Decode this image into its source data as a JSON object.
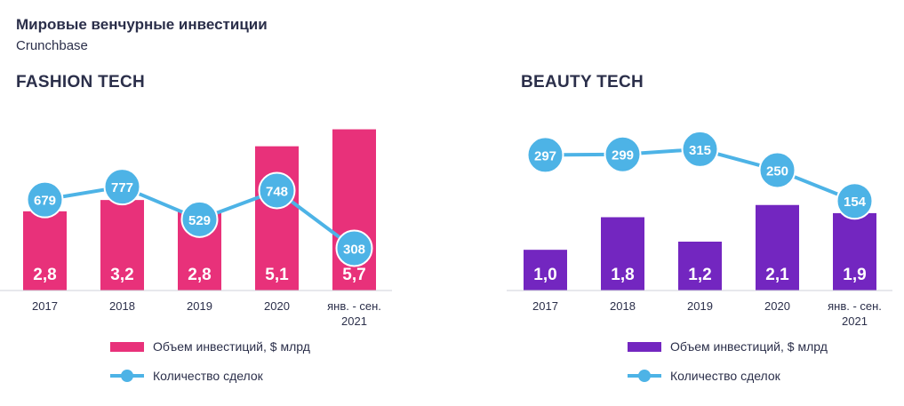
{
  "header": {
    "title": "Мировые венчурные инвестиции",
    "source": "Crunchbase"
  },
  "chart_data": [
    {
      "type": "bar",
      "title": "FASHION TECH",
      "categories": [
        "2017",
        "2018",
        "2019",
        "2020",
        "янв. - сен. 2021"
      ],
      "category_lines": [
        [
          "2017"
        ],
        [
          "2018"
        ],
        [
          "2019"
        ],
        [
          "2020"
        ],
        [
          "янв. - сен.",
          "2021"
        ]
      ],
      "series": [
        {
          "name": "Объем инвестиций, $ млрд",
          "kind": "bar",
          "values": [
            2.8,
            3.2,
            2.8,
            5.1,
            5.7
          ],
          "labels": [
            "2,8",
            "3,2",
            "2,8",
            "5,1",
            "5,7"
          ],
          "color": "#e8317a"
        },
        {
          "name": "Количество сделок",
          "kind": "line",
          "values": [
            679,
            777,
            529,
            748,
            308
          ],
          "labels": [
            "679",
            "777",
            "529",
            "748",
            "308"
          ],
          "color": "#4db3e6"
        }
      ],
      "bar_ylim": [
        0,
        6
      ],
      "line_ylim": [
        0,
        900
      ],
      "legend": [
        "Объем инвестиций, $ млрд",
        "Количество сделок"
      ]
    },
    {
      "type": "bar",
      "title": "BEAUTY TECH",
      "categories": [
        "2017",
        "2018",
        "2019",
        "2020",
        "янв. - сен. 2021"
      ],
      "category_lines": [
        [
          "2017"
        ],
        [
          "2018"
        ],
        [
          "2019"
        ],
        [
          "2020"
        ],
        [
          "янв. - сен.",
          "2021"
        ]
      ],
      "series": [
        {
          "name": "Объем инвестиций, $ млрд",
          "kind": "bar",
          "values": [
            1.0,
            1.8,
            1.2,
            2.1,
            1.9
          ],
          "labels": [
            "1,0",
            "1,8",
            "1,2",
            "2,1",
            "1,9"
          ],
          "color": "#7326c0"
        },
        {
          "name": "Количество сделок",
          "kind": "line",
          "values": [
            297,
            299,
            315,
            250,
            154
          ],
          "labels": [
            "297",
            "299",
            "315",
            "250",
            "154"
          ],
          "color": "#4db3e6"
        }
      ],
      "bar_ylim": [
        0,
        2.4
      ],
      "line_ylim": [
        0,
        450
      ],
      "legend": [
        "Объем инвестиций, $ млрд",
        "Количество сделок"
      ]
    }
  ]
}
